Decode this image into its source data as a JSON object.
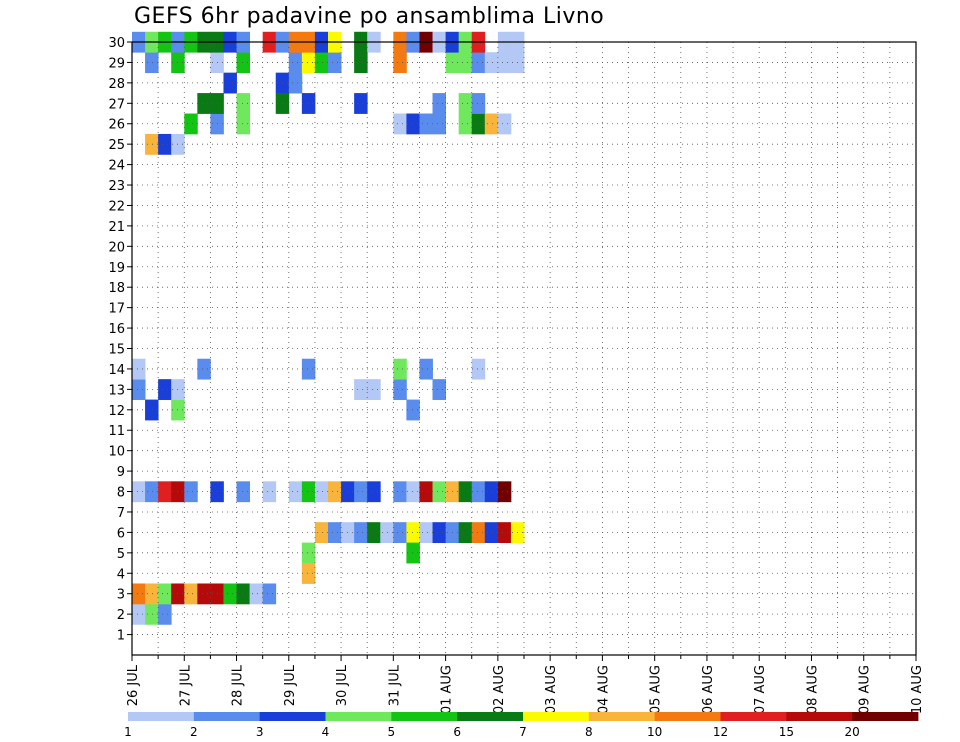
{
  "title": "GEFS 6hr padavine po ansamblima Livno",
  "chart_data": {
    "type": "heatmap",
    "title": "GEFS 6hr padavine po ansamblima Livno",
    "x_tick_labels": [
      "26 JUL",
      "27 JUL",
      "28 JUL",
      "29 JUL",
      "30 JUL",
      "31 JUL",
      "01 AUG",
      "02 AUG",
      "03 AUG",
      "04 AUG",
      "05 AUG",
      "06 AUG",
      "07 AUG",
      "08 AUG",
      "09 AUG",
      "10 AUG"
    ],
    "x_time_step_hours": 6,
    "y_tick_labels": [
      1,
      2,
      3,
      4,
      5,
      6,
      7,
      8,
      9,
      10,
      11,
      12,
      13,
      14,
      15,
      16,
      17,
      18,
      19,
      20,
      21,
      22,
      23,
      24,
      25,
      26,
      27,
      28,
      29,
      30
    ],
    "y_range": [
      0,
      30
    ],
    "grid": true,
    "legend_placement": "bottom",
    "legend_levels": [
      "1",
      "2",
      "3",
      "4",
      "5",
      "6",
      "7",
      "8",
      "10",
      "12",
      "15",
      "20"
    ],
    "colors": [
      "#ffffff",
      "#b4c8f5",
      "#5a8cee",
      "#1a3fd8",
      "#70e85e",
      "#14c414",
      "#0a7a14",
      "#fafa00",
      "#f9b43c",
      "#f27a10",
      "#e02020",
      "#b40a0a",
      "#700000"
    ],
    "cells": [
      [
        2,
        0,
        1
      ],
      [
        2,
        1,
        4
      ],
      [
        2,
        2,
        2
      ],
      [
        3,
        0,
        9
      ],
      [
        3,
        1,
        8
      ],
      [
        3,
        2,
        4
      ],
      [
        3,
        3,
        11
      ],
      [
        3,
        4,
        8
      ],
      [
        3,
        5,
        11
      ],
      [
        3,
        6,
        11
      ],
      [
        3,
        7,
        5
      ],
      [
        3,
        8,
        6
      ],
      [
        3,
        9,
        1
      ],
      [
        3,
        10,
        2
      ],
      [
        6,
        14,
        8
      ],
      [
        6,
        15,
        2
      ],
      [
        6,
        16,
        1
      ],
      [
        6,
        17,
        2
      ],
      [
        6,
        18,
        6
      ],
      [
        6,
        19,
        1
      ],
      [
        6,
        20,
        2
      ],
      [
        6,
        21,
        7
      ],
      [
        6,
        22,
        1
      ],
      [
        6,
        23,
        3
      ],
      [
        6,
        24,
        2
      ],
      [
        6,
        25,
        6
      ],
      [
        6,
        26,
        9
      ],
      [
        6,
        27,
        3
      ],
      [
        6,
        28,
        11
      ],
      [
        6,
        29,
        7
      ],
      [
        5,
        21,
        5
      ],
      [
        5,
        13,
        4
      ],
      [
        4,
        13,
        8
      ],
      [
        12,
        1,
        3
      ],
      [
        12,
        3,
        4
      ],
      [
        12,
        21,
        2
      ],
      [
        13,
        0,
        2
      ],
      [
        13,
        2,
        3
      ],
      [
        13,
        3,
        1
      ],
      [
        13,
        17,
        1
      ],
      [
        13,
        18,
        1
      ],
      [
        13,
        20,
        2
      ],
      [
        13,
        23,
        2
      ],
      [
        14,
        0,
        1
      ],
      [
        14,
        5,
        2
      ],
      [
        14,
        13,
        2
      ],
      [
        14,
        20,
        4
      ],
      [
        14,
        22,
        2
      ],
      [
        14,
        26,
        1
      ],
      [
        8,
        0,
        1
      ],
      [
        8,
        1,
        2
      ],
      [
        8,
        2,
        10
      ],
      [
        8,
        3,
        11
      ],
      [
        8,
        4,
        2
      ],
      [
        8,
        6,
        3
      ],
      [
        8,
        8,
        2
      ],
      [
        8,
        10,
        1
      ],
      [
        8,
        12,
        1
      ],
      [
        8,
        13,
        5
      ],
      [
        8,
        14,
        1
      ],
      [
        8,
        15,
        8
      ],
      [
        8,
        16,
        3
      ],
      [
        8,
        17,
        2
      ],
      [
        8,
        18,
        3
      ],
      [
        8,
        20,
        2
      ],
      [
        8,
        21,
        1
      ],
      [
        8,
        22,
        11
      ],
      [
        8,
        23,
        4
      ],
      [
        8,
        24,
        8
      ],
      [
        8,
        25,
        6
      ],
      [
        8,
        26,
        2
      ],
      [
        8,
        27,
        3
      ],
      [
        8,
        28,
        12
      ],
      [
        25,
        1,
        8
      ],
      [
        25,
        2,
        3
      ],
      [
        25,
        3,
        1
      ],
      [
        26,
        4,
        5
      ],
      [
        26,
        6,
        2
      ],
      [
        26,
        8,
        4
      ],
      [
        26,
        20,
        1
      ],
      [
        26,
        21,
        3
      ],
      [
        26,
        22,
        2
      ],
      [
        26,
        23,
        2
      ],
      [
        26,
        25,
        4
      ],
      [
        26,
        26,
        6
      ],
      [
        26,
        27,
        8
      ],
      [
        26,
        28,
        1
      ],
      [
        28,
        7,
        3
      ],
      [
        28,
        11,
        3
      ],
      [
        28,
        12,
        2
      ],
      [
        27,
        5,
        6
      ],
      [
        27,
        6,
        6
      ],
      [
        27,
        8,
        4
      ],
      [
        27,
        11,
        6
      ],
      [
        27,
        13,
        3
      ],
      [
        27,
        17,
        3
      ],
      [
        27,
        23,
        2
      ],
      [
        27,
        25,
        4
      ],
      [
        27,
        26,
        2
      ],
      [
        29,
        1,
        2
      ],
      [
        29,
        3,
        5
      ],
      [
        29,
        6,
        1
      ],
      [
        29,
        8,
        5
      ],
      [
        29,
        12,
        2
      ],
      [
        29,
        13,
        7
      ],
      [
        29,
        14,
        5
      ],
      [
        29,
        15,
        2
      ],
      [
        29,
        17,
        6
      ],
      [
        29,
        20,
        9
      ],
      [
        29,
        24,
        4
      ],
      [
        29,
        25,
        4
      ],
      [
        29,
        26,
        2
      ],
      [
        29,
        27,
        1
      ],
      [
        29,
        28,
        1
      ],
      [
        29,
        29,
        1
      ],
      [
        30,
        0,
        2
      ],
      [
        30,
        1,
        4
      ],
      [
        30,
        2,
        5
      ],
      [
        30,
        3,
        2
      ],
      [
        30,
        4,
        5
      ],
      [
        30,
        5,
        6
      ],
      [
        30,
        6,
        6
      ],
      [
        30,
        7,
        3
      ],
      [
        30,
        8,
        2
      ],
      [
        30,
        10,
        10
      ],
      [
        30,
        11,
        2
      ],
      [
        30,
        12,
        9
      ],
      [
        30,
        13,
        9
      ],
      [
        30,
        14,
        3
      ],
      [
        30,
        15,
        7
      ],
      [
        30,
        17,
        6
      ],
      [
        30,
        18,
        1
      ],
      [
        30,
        20,
        9
      ],
      [
        30,
        21,
        2
      ],
      [
        30,
        22,
        12
      ],
      [
        30,
        23,
        1
      ],
      [
        30,
        24,
        3
      ],
      [
        30,
        25,
        4
      ],
      [
        30,
        26,
        10
      ],
      [
        30,
        28,
        1
      ],
      [
        30,
        29,
        1
      ]
    ]
  }
}
